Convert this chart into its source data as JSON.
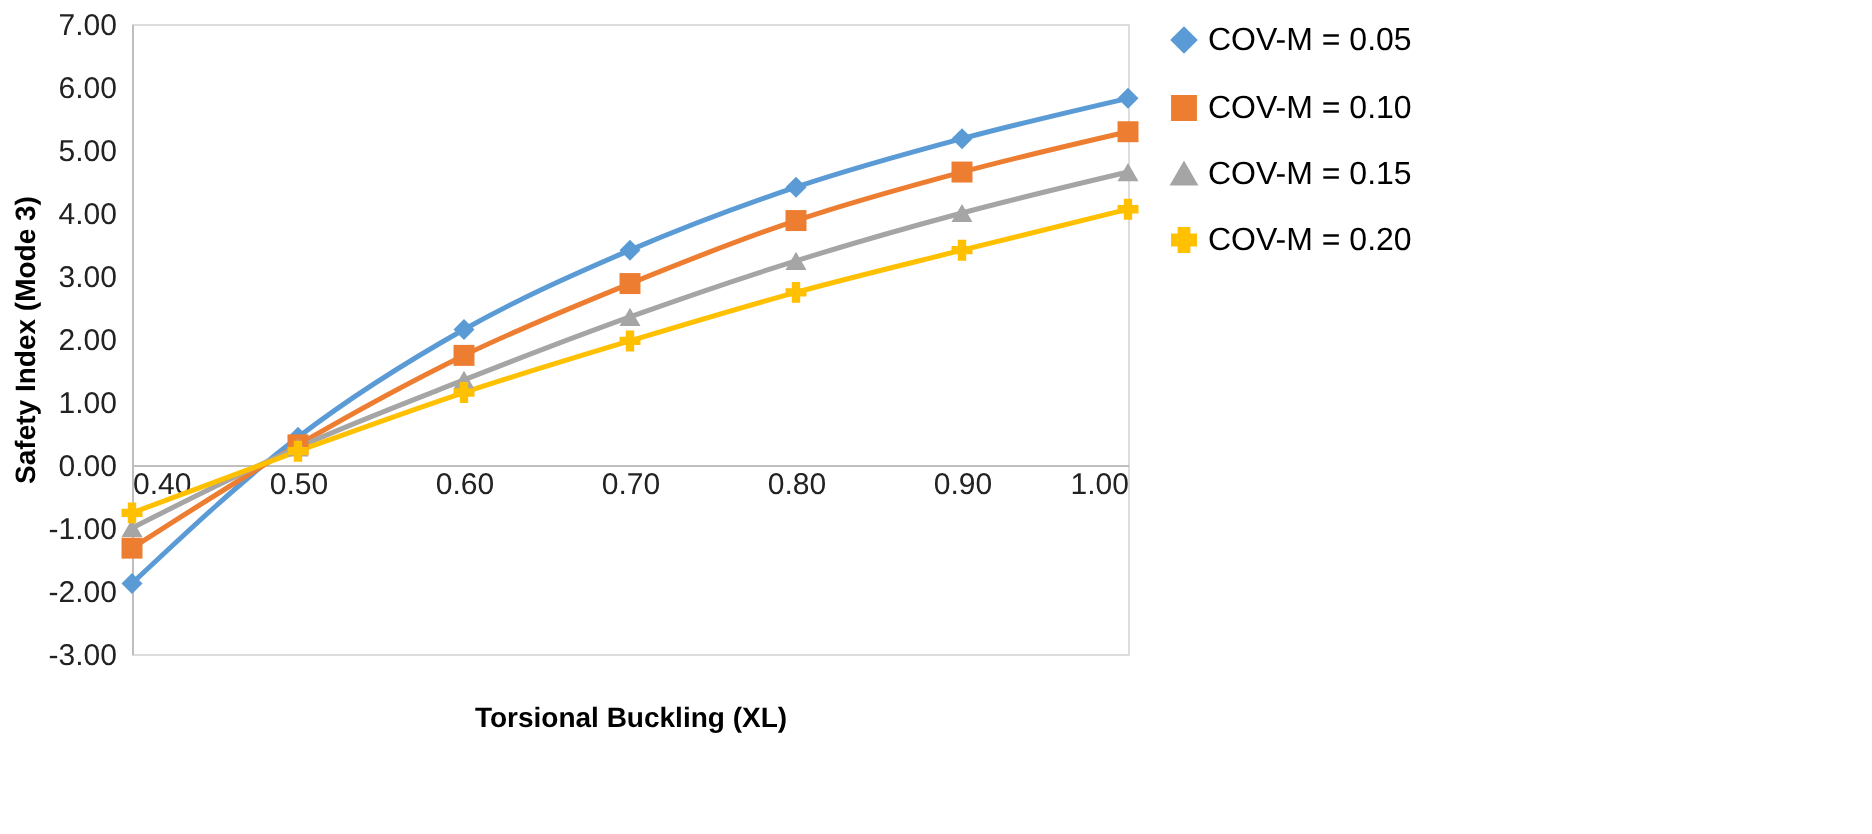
{
  "chart_data": {
    "type": "line",
    "xlabel": "Torsional  Buckling (XL)",
    "ylabel": "Safety Index (Mode 3)",
    "x": [
      0.4,
      0.5,
      0.6,
      0.7,
      0.8,
      0.9,
      1.0
    ],
    "xlim": [
      0.4,
      1.0
    ],
    "xticks": [
      {
        "value": 0.4,
        "label": "0.40"
      },
      {
        "value": 0.5,
        "label": "0.50"
      },
      {
        "value": 0.6,
        "label": "0.60"
      },
      {
        "value": 0.7,
        "label": "0.70"
      },
      {
        "value": 0.8,
        "label": "0.80"
      },
      {
        "value": 0.9,
        "label": "0.90"
      },
      {
        "value": 1.0,
        "label": "1.00"
      }
    ],
    "ylim": [
      -3,
      7
    ],
    "yticks": [
      {
        "value": -3,
        "label": "-3.00"
      },
      {
        "value": -2,
        "label": "-2.00"
      },
      {
        "value": -1,
        "label": "-1.00"
      },
      {
        "value": 0,
        "label": "0.00"
      },
      {
        "value": 1,
        "label": "1.00"
      },
      {
        "value": 2,
        "label": "2.00"
      },
      {
        "value": 3,
        "label": "3.00"
      },
      {
        "value": 4,
        "label": "4.00"
      },
      {
        "value": 5,
        "label": "5.00"
      },
      {
        "value": 6,
        "label": "6.00"
      },
      {
        "value": 7,
        "label": "7.00"
      }
    ],
    "grid": false,
    "legend": "right",
    "line_style": "solid",
    "series": [
      {
        "name": "COV-M = 0.05",
        "color": "#5b9bd5",
        "marker": "diamond",
        "values": [
          -1.88,
          0.44,
          2.15,
          3.41,
          4.41,
          5.18,
          5.82
        ]
      },
      {
        "name": "COV-M = 0.10",
        "color": "#ed7d31",
        "marker": "square",
        "values": [
          -1.32,
          0.32,
          1.74,
          2.88,
          3.88,
          4.65,
          5.29
        ]
      },
      {
        "name": "COV-M = 0.15",
        "color": "#a5a5a5",
        "marker": "triangle",
        "values": [
          -1.0,
          0.28,
          1.35,
          2.35,
          3.24,
          4.0,
          4.65
        ]
      },
      {
        "name": "COV-M = 0.20",
        "color": "#ffc000",
        "marker": "cross",
        "values": [
          -0.76,
          0.22,
          1.15,
          1.97,
          2.74,
          3.41,
          4.06
        ]
      }
    ]
  }
}
